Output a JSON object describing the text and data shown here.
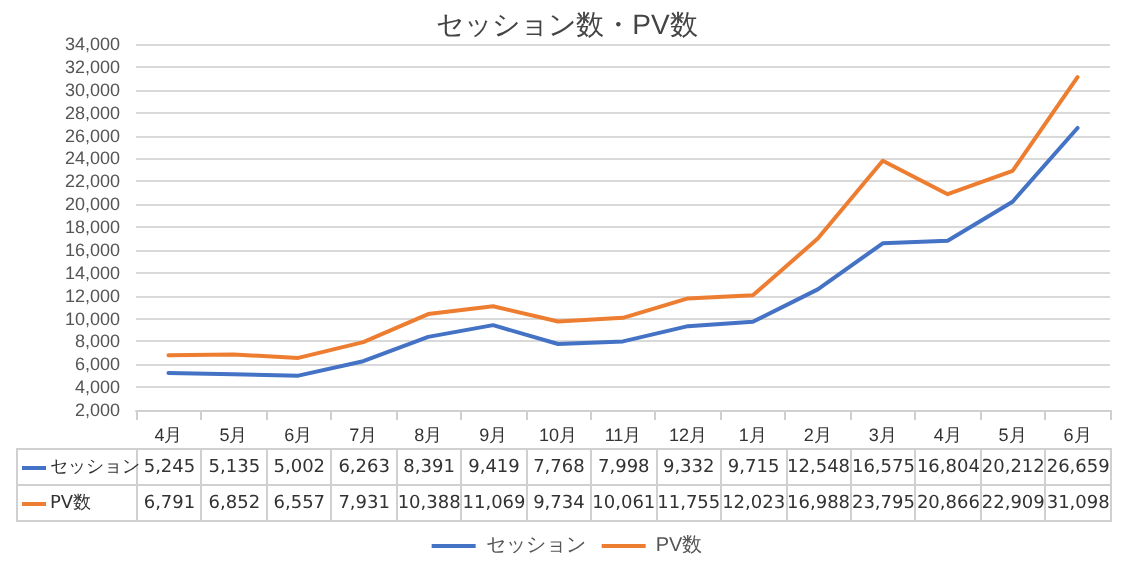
{
  "chart_data": {
    "type": "line",
    "title": "セッション数・PV数",
    "categories": [
      "4月",
      "5月",
      "6月",
      "7月",
      "8月",
      "9月",
      "10月",
      "11月",
      "12月",
      "1月",
      "2月",
      "3月",
      "4月",
      "5月",
      "6月"
    ],
    "series": [
      {
        "name": "セッション",
        "color": "#4472c4",
        "values": [
          5245,
          5135,
          5002,
          6263,
          8391,
          9419,
          7768,
          7998,
          9332,
          9715,
          12548,
          16575,
          16804,
          20212,
          26659
        ],
        "value_labels": [
          "5,245",
          "5,135",
          "5,002",
          "6,263",
          "8,391",
          "9,419",
          "7,768",
          "7,998",
          "9,332",
          "9,715",
          "12,548",
          "16,575",
          "16,804",
          "20,212",
          "26,659"
        ]
      },
      {
        "name": "PV数",
        "color": "#ed7d31",
        "values": [
          6791,
          6852,
          6557,
          7931,
          10388,
          11069,
          9734,
          10061,
          11755,
          12023,
          16988,
          23795,
          20866,
          22909,
          31098
        ],
        "value_labels": [
          "6,791",
          "6,852",
          "6,557",
          "7,931",
          "10,388",
          "11,069",
          "9,734",
          "10,061",
          "11,755",
          "12,023",
          "16,988",
          "23,795",
          "20,866",
          "22,909",
          "31,098"
        ]
      }
    ],
    "ylim": [
      2000,
      34000
    ],
    "yticks": [
      {
        "value": 2000,
        "label": "2,000"
      },
      {
        "value": 4000,
        "label": "4,000"
      },
      {
        "value": 6000,
        "label": "6,000"
      },
      {
        "value": 8000,
        "label": "8,000"
      },
      {
        "value": 10000,
        "label": "10,000"
      },
      {
        "value": 12000,
        "label": "12,000"
      },
      {
        "value": 14000,
        "label": "14,000"
      },
      {
        "value": 16000,
        "label": "16,000"
      },
      {
        "value": 18000,
        "label": "18,000"
      },
      {
        "value": 20000,
        "label": "20,000"
      },
      {
        "value": 22000,
        "label": "22,000"
      },
      {
        "value": 24000,
        "label": "24,000"
      },
      {
        "value": 26000,
        "label": "26,000"
      },
      {
        "value": 28000,
        "label": "28,000"
      },
      {
        "value": 30000,
        "label": "30,000"
      },
      {
        "value": 32000,
        "label": "32,000"
      },
      {
        "value": 34000,
        "label": "34,000"
      }
    ],
    "grid": "y",
    "legend": "bottom",
    "marker": "none",
    "line_style": "solid"
  }
}
